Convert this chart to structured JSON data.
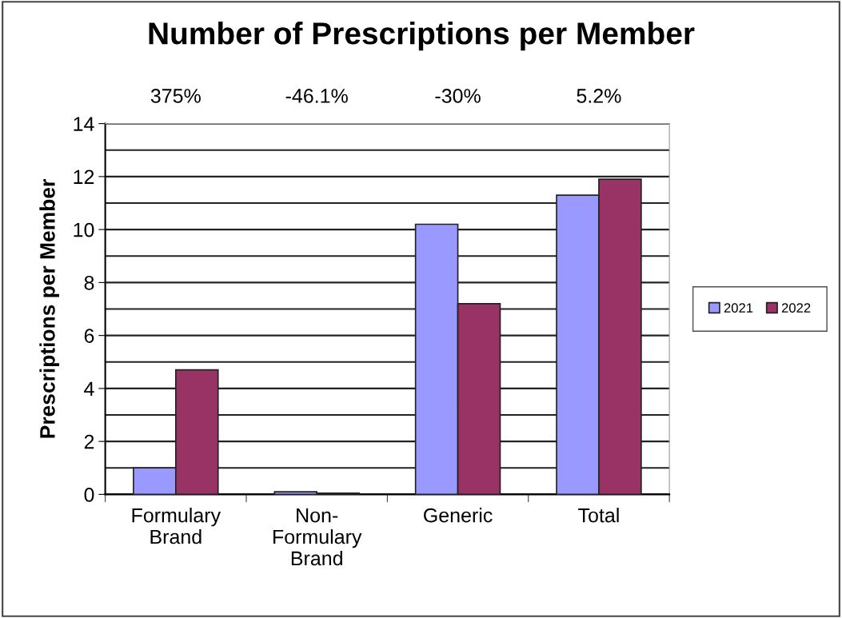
{
  "chart_data": {
    "type": "bar",
    "title": "Number of Prescriptions per Member",
    "ylabel": "Prescriptions per Member",
    "categories": [
      "Formulary\nBrand",
      "Non-\nFormulary\nBrand",
      "Generic",
      "Total"
    ],
    "series": [
      {
        "name": "2021",
        "color": "#9999ff",
        "values": [
          1.0,
          0.1,
          10.2,
          11.3
        ]
      },
      {
        "name": "2022",
        "color": "#993366",
        "values": [
          4.7,
          0.05,
          7.2,
          11.9
        ]
      }
    ],
    "annotations": [
      "375%",
      "-46.1%",
      "-30%",
      "5.2%"
    ],
    "ylim": [
      0,
      14
    ],
    "yticks": [
      0,
      {
        "value": 1,
        "label": null
      },
      2,
      {
        "value": 3,
        "label": null
      },
      4,
      {
        "value": 5,
        "label": null
      },
      6,
      {
        "value": 7,
        "label": null
      },
      8,
      {
        "value": 9,
        "label": null
      },
      10,
      {
        "value": 11,
        "label": null
      },
      12,
      {
        "value": 13,
        "label": null
      },
      14
    ],
    "grid": "y",
    "legend": "right"
  }
}
